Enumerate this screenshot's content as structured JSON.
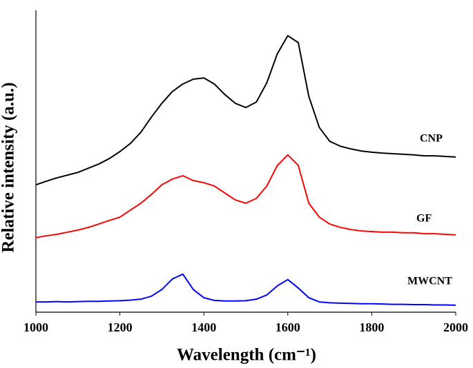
{
  "chart_data": {
    "type": "line",
    "xlabel": "Wavelength (cm⁻¹)",
    "ylabel": "Relative intensity (a.u.)",
    "x": [
      1000,
      1025,
      1050,
      1075,
      1100,
      1125,
      1150,
      1175,
      1200,
      1225,
      1250,
      1275,
      1300,
      1325,
      1350,
      1375,
      1400,
      1425,
      1450,
      1475,
      1500,
      1525,
      1550,
      1575,
      1600,
      1625,
      1650,
      1675,
      1700,
      1725,
      1750,
      1775,
      1800,
      1825,
      1850,
      1875,
      1900,
      1925,
      1950,
      1975,
      2000
    ],
    "series": [
      {
        "name": "CNP",
        "color": "#000000",
        "values": [
          42.2,
          43.4,
          44.5,
          45.4,
          46.3,
          47.7,
          49.1,
          50.9,
          53.2,
          55.9,
          59.6,
          64.6,
          69.2,
          73.1,
          75.6,
          77.2,
          77.6,
          75.6,
          72.1,
          69.2,
          67.8,
          69.6,
          76.0,
          85.6,
          91.6,
          89.3,
          71.5,
          61.2,
          56.6,
          55.0,
          54.1,
          53.4,
          53.0,
          52.7,
          52.5,
          52.3,
          52.1,
          51.8,
          51.8,
          51.6,
          51.4
        ]
      },
      {
        "name": "GF",
        "color": "#ff0000",
        "values": [
          24.7,
          25.3,
          25.8,
          26.5,
          27.2,
          28.1,
          29.2,
          30.4,
          31.5,
          33.8,
          36.1,
          39.0,
          42.2,
          44.1,
          45.2,
          43.6,
          42.9,
          41.8,
          39.5,
          37.2,
          36.1,
          37.7,
          41.8,
          48.6,
          52.1,
          48.6,
          36.1,
          31.5,
          29.2,
          28.1,
          27.4,
          26.9,
          26.7,
          26.5,
          26.5,
          26.3,
          26.3,
          26.0,
          26.0,
          25.8,
          25.6
        ]
      },
      {
        "name": "MWCNT",
        "color": "#0000ff",
        "values": [
          3.4,
          3.4,
          3.5,
          3.4,
          3.5,
          3.6,
          3.6,
          3.7,
          3.8,
          4.0,
          4.3,
          5.3,
          7.5,
          11.0,
          12.6,
          7.5,
          4.8,
          3.9,
          3.7,
          3.7,
          3.8,
          4.3,
          5.7,
          8.7,
          10.8,
          8.0,
          4.8,
          3.4,
          3.1,
          3.0,
          2.9,
          2.8,
          2.8,
          2.7,
          2.6,
          2.6,
          2.5,
          2.5,
          2.4,
          2.4,
          2.3
        ]
      }
    ],
    "xlim": [
      1000,
      2000
    ],
    "xticks": [
      1000,
      1200,
      1400,
      1600,
      1800,
      2000
    ],
    "ylim": [
      0,
      100
    ],
    "legend": "inline"
  }
}
